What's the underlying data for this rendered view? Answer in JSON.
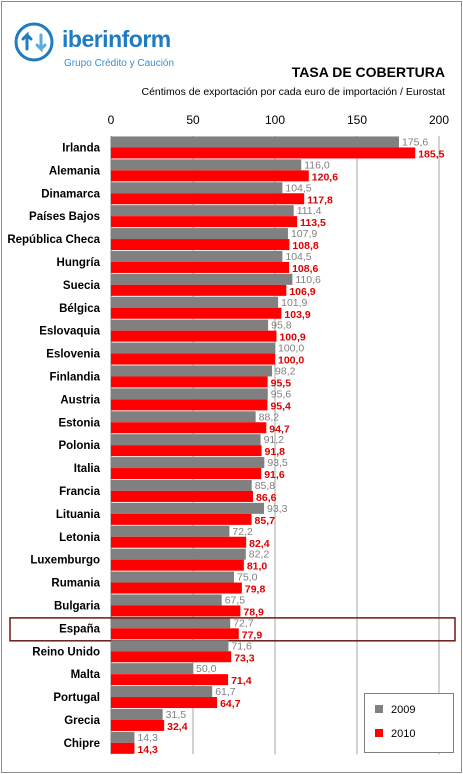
{
  "logo": {
    "name": "iberinform",
    "tagline": "Grupo Crédito y Caución"
  },
  "chart_data": {
    "type": "bar",
    "orientation": "horizontal",
    "title": "TASA DE COBERTURA",
    "subtitle": "Céntimos de exportación por cada euro de importación / Eurostat",
    "xlim": [
      0,
      200
    ],
    "xticks": [
      0,
      50,
      100,
      150,
      200
    ],
    "grid": true,
    "legend_position": "bottom-right",
    "highlight": "España",
    "categories": [
      "Irlanda",
      "Alemania",
      "Dinamarca",
      "Países Bajos",
      "República Checa",
      "Hungría",
      "Suecia",
      "Bélgica",
      "Eslovaquia",
      "Eslovenia",
      "Finlandia",
      "Austria",
      "Estonia",
      "Polonia",
      "Italia",
      "Francia",
      "Lituania",
      "Letonia",
      "Luxemburgo",
      "Rumania",
      "Bulgaria",
      "España",
      "Reino Unido",
      "Malta",
      "Portugal",
      "Grecia",
      "Chipre"
    ],
    "series": [
      {
        "name": "2009",
        "color": "#808080",
        "value_label_color": "#808080",
        "values": [
          175.6,
          116.0,
          104.5,
          111.4,
          107.9,
          104.5,
          110.6,
          101.9,
          95.8,
          100.0,
          98.2,
          95.6,
          88.2,
          91.2,
          93.5,
          85.8,
          93.3,
          72.2,
          82.2,
          75.0,
          67.5,
          72.7,
          71.6,
          50.0,
          61.7,
          31.5,
          14.3
        ],
        "labels": [
          "175,6",
          "116,0",
          "104,5",
          "111,4",
          "107,9",
          "104,5",
          "110,6",
          "101,9",
          "95,8",
          "100,0",
          "98,2",
          "95,6",
          "88,2",
          "91,2",
          "93,5",
          "85,8",
          "93,3",
          "72,2",
          "82,2",
          "75,0",
          "67,5",
          "72,7",
          "71,6",
          "50,0",
          "61,7",
          "31,5",
          "14,3"
        ]
      },
      {
        "name": "2010",
        "color": "#ff0000",
        "value_label_color": "#e00000",
        "values": [
          185.5,
          120.6,
          117.8,
          113.5,
          108.8,
          108.6,
          106.9,
          103.9,
          100.9,
          100.0,
          95.5,
          95.4,
          94.7,
          91.8,
          91.6,
          86.6,
          85.7,
          82.4,
          81.0,
          79.8,
          78.9,
          77.9,
          73.3,
          71.4,
          64.7,
          32.4,
          14.3
        ],
        "labels": [
          "185,5",
          "120,6",
          "117,8",
          "113,5",
          "108,8",
          "108,6",
          "106,9",
          "103,9",
          "100,9",
          "100,0",
          "95,5",
          "95,4",
          "94,7",
          "91,8",
          "91,6",
          "86,6",
          "85,7",
          "82,4",
          "81,0",
          "79,8",
          "78,9",
          "77,9",
          "73,3",
          "71,4",
          "64,7",
          "32,4",
          "14,3"
        ]
      }
    ]
  }
}
